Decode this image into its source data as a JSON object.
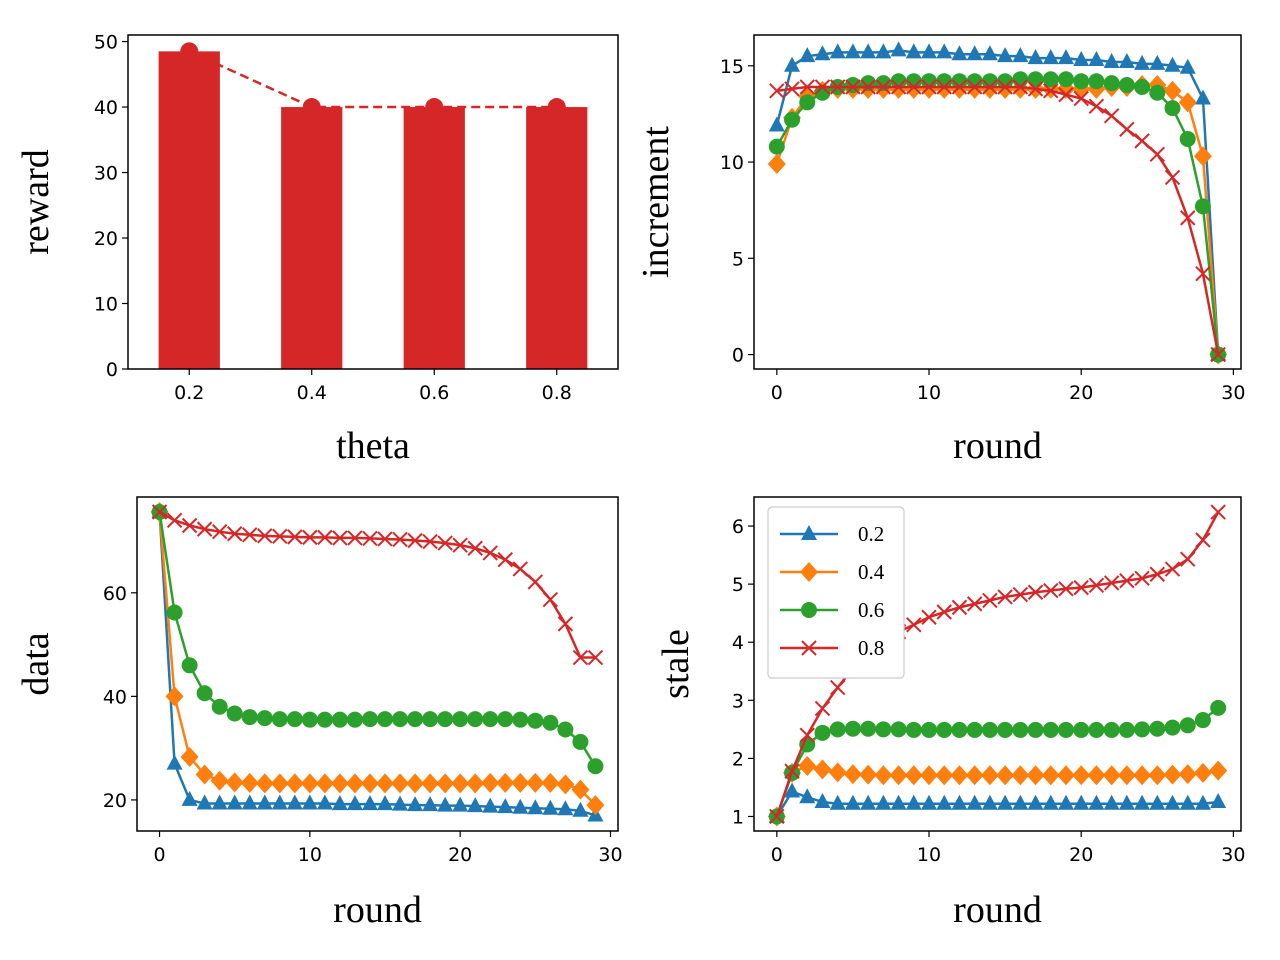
{
  "chart_data": [
    {
      "id": "reward",
      "type": "bar",
      "xlabel": "theta",
      "ylabel": "reward",
      "categories": [
        "0.2",
        "0.4",
        "0.6",
        "0.8"
      ],
      "values": [
        48.5,
        40,
        40,
        40
      ],
      "overlay_line": {
        "style": "dashed",
        "marker": "circle",
        "values": [
          48.5,
          40,
          40,
          40
        ]
      },
      "xlim": [
        0.1,
        0.9
      ],
      "ylim": [
        0,
        51
      ],
      "yticks": [
        0,
        10,
        20,
        30,
        40,
        50
      ],
      "xticks": [
        0.2,
        0.4,
        0.6,
        0.8
      ],
      "grid": false,
      "color": "#d62728"
    },
    {
      "id": "increment",
      "type": "line",
      "xlabel": "round",
      "ylabel": "increment",
      "xlim": [
        -1.5,
        30.5
      ],
      "ylim": [
        -0.75,
        16.6
      ],
      "xticks": [
        0,
        10,
        20,
        30
      ],
      "yticks": [
        0,
        5,
        10,
        15
      ],
      "grid": false,
      "x": [
        0,
        1,
        2,
        3,
        4,
        5,
        6,
        7,
        8,
        9,
        10,
        11,
        12,
        13,
        14,
        15,
        16,
        17,
        18,
        19,
        20,
        21,
        22,
        23,
        24,
        25,
        26,
        27,
        28,
        29
      ],
      "series": [
        {
          "name": "0.2",
          "color": "#1f77b4",
          "marker": "triangle",
          "values": [
            11.9,
            15.0,
            15.5,
            15.6,
            15.7,
            15.7,
            15.7,
            15.7,
            15.8,
            15.7,
            15.7,
            15.7,
            15.6,
            15.6,
            15.6,
            15.5,
            15.5,
            15.4,
            15.4,
            15.4,
            15.3,
            15.3,
            15.2,
            15.2,
            15.1,
            15.1,
            15.0,
            14.9,
            13.3,
            0
          ]
        },
        {
          "name": "0.4",
          "color": "#ff7f0e",
          "marker": "diamond",
          "values": [
            9.9,
            12.3,
            13.4,
            13.7,
            13.8,
            13.8,
            13.8,
            13.8,
            13.8,
            13.8,
            13.8,
            13.8,
            13.8,
            13.8,
            13.8,
            13.8,
            13.8,
            13.8,
            13.8,
            13.8,
            13.8,
            13.8,
            13.9,
            13.9,
            14.0,
            14.0,
            13.7,
            13.1,
            10.3,
            0
          ]
        },
        {
          "name": "0.6",
          "color": "#2ca02c",
          "marker": "circle",
          "values": [
            10.8,
            12.2,
            13.1,
            13.6,
            13.9,
            14.0,
            14.1,
            14.1,
            14.2,
            14.2,
            14.2,
            14.2,
            14.2,
            14.2,
            14.2,
            14.2,
            14.3,
            14.3,
            14.3,
            14.3,
            14.2,
            14.2,
            14.1,
            14.0,
            13.9,
            13.6,
            12.8,
            11.2,
            7.7,
            0
          ]
        },
        {
          "name": "0.8",
          "color": "#d62728",
          "marker": "x",
          "values": [
            13.7,
            13.8,
            13.9,
            13.9,
            13.9,
            13.9,
            13.9,
            13.9,
            13.9,
            13.9,
            13.9,
            13.9,
            13.9,
            13.9,
            13.9,
            13.9,
            13.9,
            13.8,
            13.7,
            13.5,
            13.3,
            12.9,
            12.4,
            11.7,
            11.1,
            10.4,
            9.2,
            7.1,
            4.2,
            0
          ]
        }
      ]
    },
    {
      "id": "data",
      "type": "line",
      "xlabel": "round",
      "ylabel": "data",
      "xlim": [
        -1.5,
        30.5
      ],
      "ylim": [
        14,
        78.5
      ],
      "xticks": [
        0,
        10,
        20,
        30
      ],
      "yticks": [
        20,
        40,
        60
      ],
      "grid": false,
      "x": [
        0,
        1,
        2,
        3,
        4,
        5,
        6,
        7,
        8,
        9,
        10,
        11,
        12,
        13,
        14,
        15,
        16,
        17,
        18,
        19,
        20,
        21,
        22,
        23,
        24,
        25,
        26,
        27,
        28,
        29
      ],
      "series": [
        {
          "name": "0.2",
          "color": "#1f77b4",
          "marker": "triangle",
          "values": [
            75.6,
            27.0,
            20.0,
            19.3,
            19.3,
            19.3,
            19.3,
            19.3,
            19.3,
            19.3,
            19.3,
            19.3,
            19.2,
            19.2,
            19.2,
            19.2,
            19.1,
            19.0,
            19.0,
            18.9,
            18.9,
            18.8,
            18.7,
            18.6,
            18.5,
            18.4,
            18.3,
            18.2,
            17.9,
            17.0
          ]
        },
        {
          "name": "0.4",
          "color": "#ff7f0e",
          "marker": "diamond",
          "values": [
            75.6,
            40.0,
            28.3,
            24.9,
            23.7,
            23.4,
            23.3,
            23.2,
            23.2,
            23.2,
            23.2,
            23.2,
            23.2,
            23.2,
            23.2,
            23.2,
            23.2,
            23.2,
            23.2,
            23.2,
            23.2,
            23.2,
            23.3,
            23.3,
            23.3,
            23.3,
            23.3,
            23.0,
            22.0,
            19.0
          ]
        },
        {
          "name": "0.6",
          "color": "#2ca02c",
          "marker": "circle",
          "values": [
            75.6,
            56.2,
            46.0,
            40.6,
            38.0,
            36.7,
            36.0,
            35.8,
            35.6,
            35.6,
            35.5,
            35.5,
            35.5,
            35.5,
            35.6,
            35.6,
            35.6,
            35.6,
            35.6,
            35.6,
            35.6,
            35.6,
            35.6,
            35.6,
            35.5,
            35.3,
            34.9,
            33.6,
            31.2,
            26.5
          ]
        },
        {
          "name": "0.8",
          "color": "#d62728",
          "marker": "x",
          "values": [
            75.6,
            74.0,
            73.0,
            72.3,
            71.8,
            71.4,
            71.2,
            71.0,
            70.9,
            70.8,
            70.7,
            70.7,
            70.6,
            70.6,
            70.5,
            70.4,
            70.3,
            70.1,
            69.9,
            69.6,
            69.2,
            68.6,
            67.7,
            66.4,
            64.6,
            62.1,
            58.7,
            54.0,
            47.5,
            47.5
          ]
        }
      ]
    },
    {
      "id": "stale",
      "type": "line",
      "xlabel": "round",
      "ylabel": "stale",
      "xlim": [
        -1.5,
        30.5
      ],
      "ylim": [
        0.75,
        6.5
      ],
      "xticks": [
        0,
        10,
        20,
        30
      ],
      "yticks": [
        1,
        2,
        3,
        4,
        5,
        6
      ],
      "grid": false,
      "legend": "top-left",
      "x": [
        0,
        1,
        2,
        3,
        4,
        5,
        6,
        7,
        8,
        9,
        10,
        11,
        12,
        13,
        14,
        15,
        16,
        17,
        18,
        19,
        20,
        21,
        22,
        23,
        24,
        25,
        26,
        27,
        28,
        29
      ],
      "series": [
        {
          "name": "0.2",
          "color": "#1f77b4",
          "marker": "triangle",
          "values": [
            1.0,
            1.43,
            1.33,
            1.25,
            1.22,
            1.22,
            1.22,
            1.22,
            1.22,
            1.22,
            1.22,
            1.22,
            1.22,
            1.22,
            1.22,
            1.22,
            1.22,
            1.22,
            1.22,
            1.22,
            1.22,
            1.22,
            1.22,
            1.22,
            1.22,
            1.22,
            1.22,
            1.22,
            1.22,
            1.25
          ]
        },
        {
          "name": "0.4",
          "color": "#ff7f0e",
          "marker": "diamond",
          "values": [
            1.0,
            1.75,
            1.87,
            1.81,
            1.76,
            1.73,
            1.72,
            1.71,
            1.71,
            1.71,
            1.71,
            1.71,
            1.71,
            1.71,
            1.71,
            1.71,
            1.71,
            1.71,
            1.71,
            1.71,
            1.71,
            1.71,
            1.71,
            1.71,
            1.71,
            1.71,
            1.72,
            1.73,
            1.75,
            1.79
          ]
        },
        {
          "name": "0.6",
          "color": "#2ca02c",
          "marker": "circle",
          "values": [
            1.0,
            1.75,
            2.24,
            2.44,
            2.5,
            2.51,
            2.51,
            2.5,
            2.5,
            2.49,
            2.49,
            2.49,
            2.49,
            2.49,
            2.49,
            2.49,
            2.49,
            2.49,
            2.49,
            2.49,
            2.49,
            2.49,
            2.49,
            2.49,
            2.5,
            2.51,
            2.53,
            2.57,
            2.66,
            2.87
          ]
        },
        {
          "name": "0.8",
          "color": "#d62728",
          "marker": "x",
          "values": [
            1.0,
            1.78,
            2.4,
            2.86,
            3.22,
            3.55,
            3.85,
            4.05,
            4.18,
            4.3,
            4.43,
            4.52,
            4.6,
            4.66,
            4.72,
            4.78,
            4.82,
            4.86,
            4.89,
            4.92,
            4.94,
            4.98,
            5.02,
            5.06,
            5.1,
            5.17,
            5.26,
            5.43,
            5.76,
            6.24
          ]
        }
      ]
    }
  ]
}
